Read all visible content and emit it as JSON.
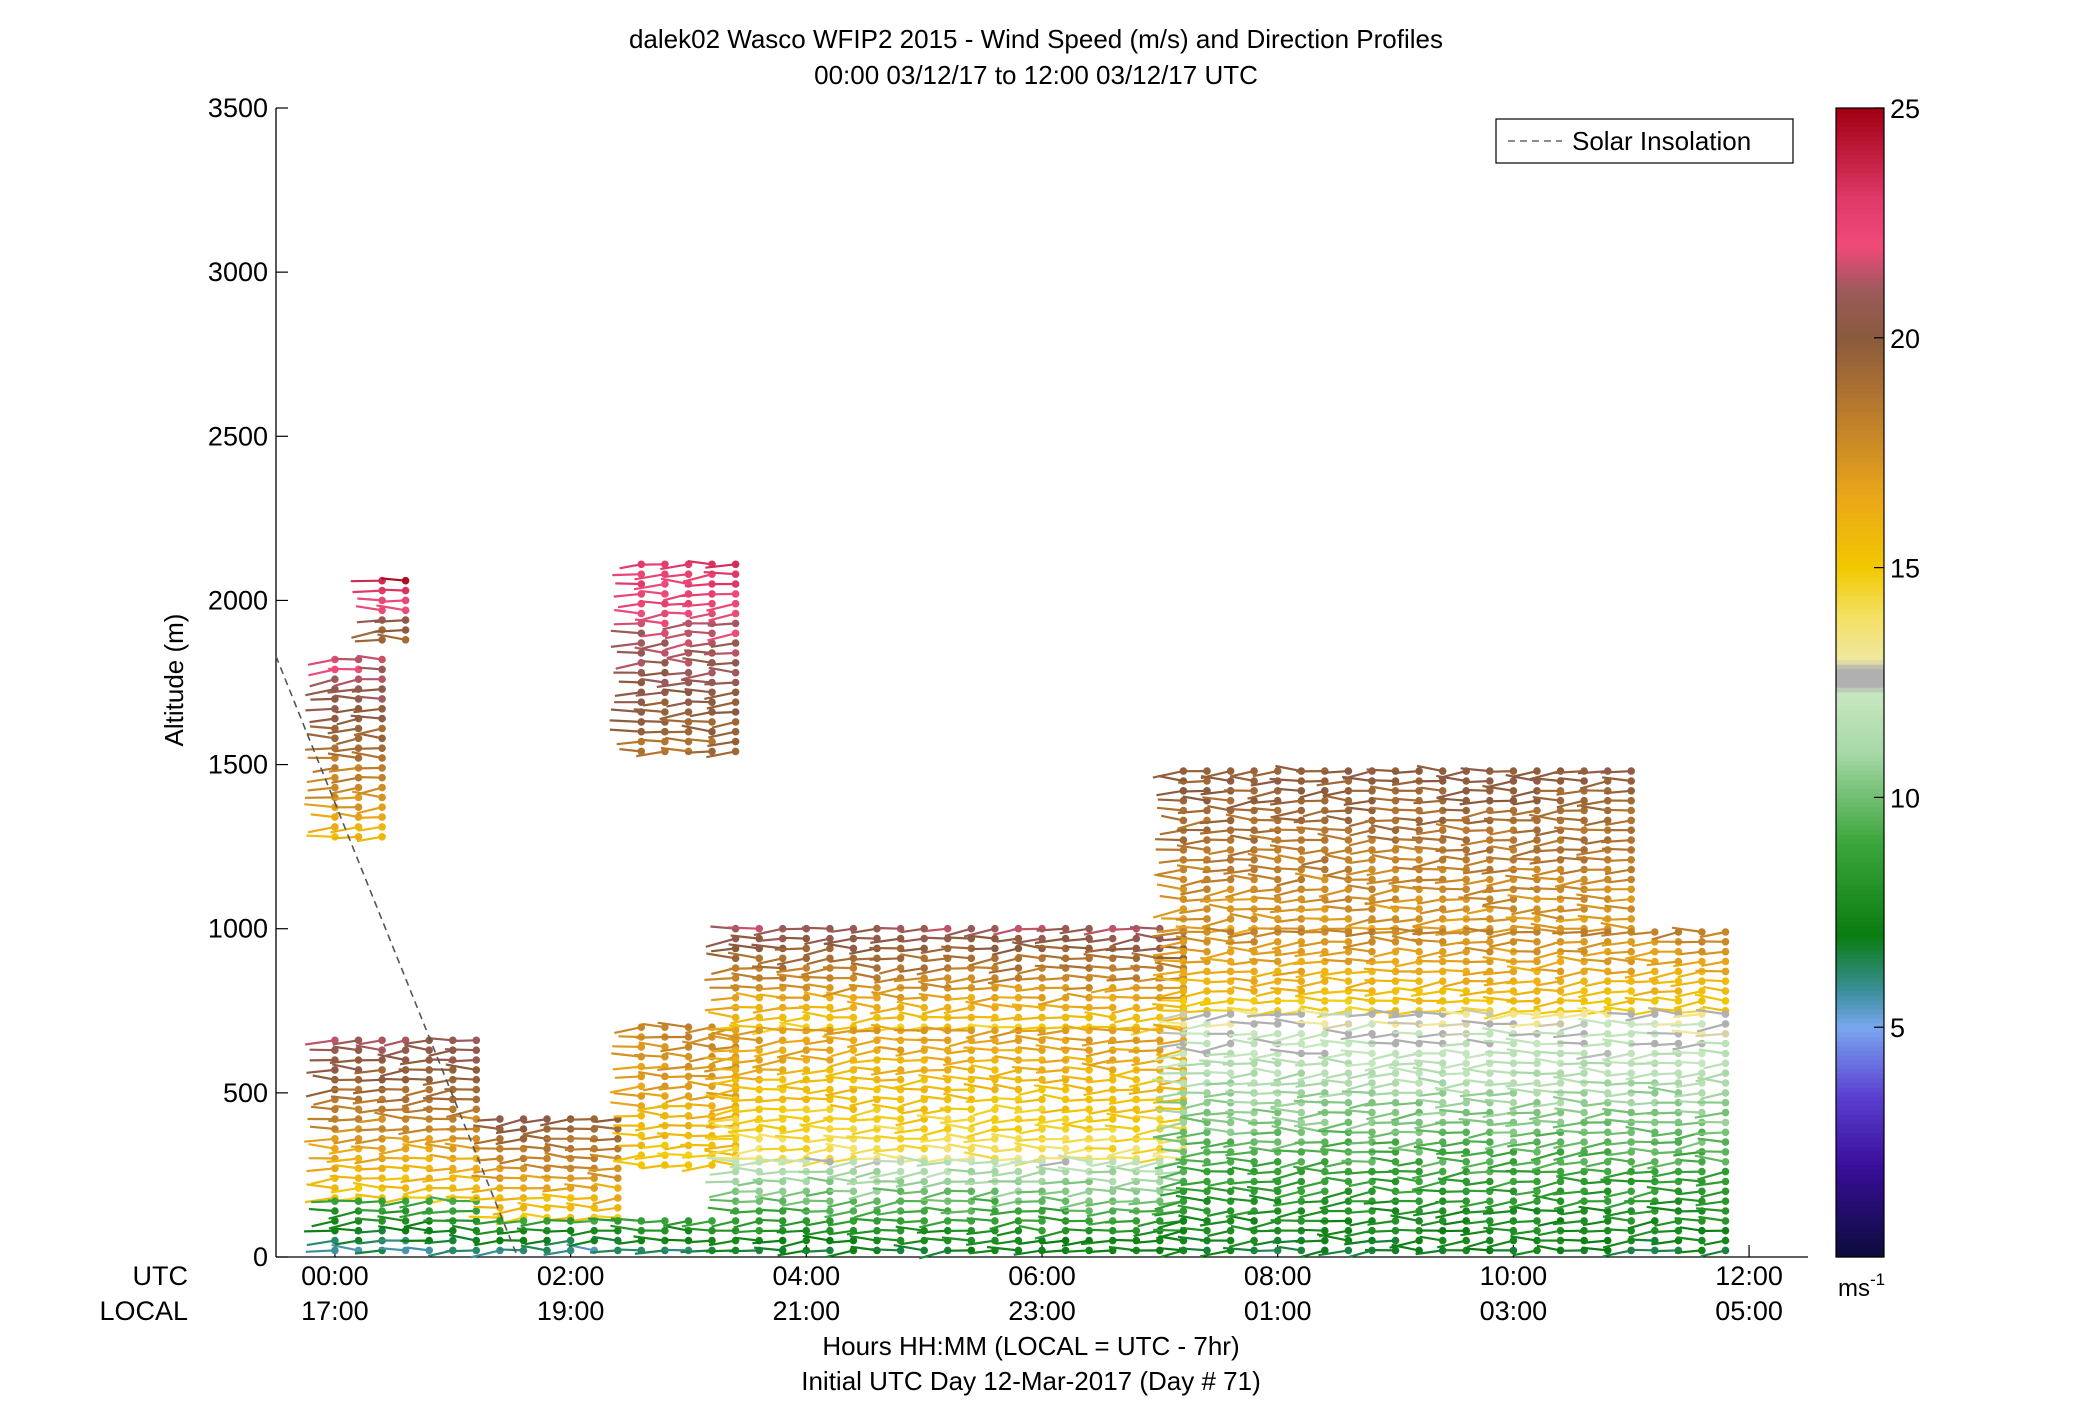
{
  "chart_data": {
    "type": "scatter",
    "title": "dalek02 Wasco WFIP2 2015 - Wind Speed (m/s) and Direction Profiles",
    "subtitle": "00:00 03/12/17 to 12:00 03/12/17  UTC",
    "ylabel": "Altitude (m)",
    "xlabel": "Hours HH:MM  (LOCAL = UTC - 7hr)",
    "xlabel2": "Initial UTC Day 12-Mar-2017 (Day # 71)",
    "row_label_utc": "UTC",
    "row_label_local": "LOCAL",
    "xlim_hours": [
      -0.5,
      12.5
    ],
    "ylim": [
      0,
      3500
    ],
    "y_ticks": [
      0,
      500,
      1000,
      1500,
      2000,
      2500,
      3000,
      3500
    ],
    "x_ticks": [
      {
        "hour": 0,
        "utc": "00:00",
        "local": "17:00"
      },
      {
        "hour": 2,
        "utc": "02:00",
        "local": "19:00"
      },
      {
        "hour": 4,
        "utc": "04:00",
        "local": "21:00"
      },
      {
        "hour": 6,
        "utc": "06:00",
        "local": "23:00"
      },
      {
        "hour": 8,
        "utc": "08:00",
        "local": "01:00"
      },
      {
        "hour": 10,
        "utc": "10:00",
        "local": "03:00"
      },
      {
        "hour": 12,
        "utc": "12:00",
        "local": "05:00"
      }
    ],
    "legend": {
      "label": "Solar Insolation",
      "position": "top-right",
      "line_color": "#666666",
      "style": "dashed"
    },
    "solar_insolation_line": [
      [
        -0.5,
        1830
      ],
      [
        1.55,
        0
      ]
    ],
    "colorbar": {
      "ticks": [
        5,
        10,
        15,
        20,
        25
      ],
      "unit_base": "ms",
      "unit_exp": "-1",
      "range": [
        0,
        25
      ],
      "stops": [
        {
          "v": 0,
          "c": "#0b0b3a"
        },
        {
          "v": 2,
          "c": "#3a0e9a"
        },
        {
          "v": 3.5,
          "c": "#5a3fd0"
        },
        {
          "v": 5,
          "c": "#7aa6f0"
        },
        {
          "v": 5.8,
          "c": "#3a8f9a"
        },
        {
          "v": 7,
          "c": "#0a7d10"
        },
        {
          "v": 9,
          "c": "#3aa53a"
        },
        {
          "v": 11,
          "c": "#a8d8a8"
        },
        {
          "v": 12.3,
          "c": "#c8e8c0"
        },
        {
          "v": 12.4,
          "c": "#b0b0b0"
        },
        {
          "v": 12.8,
          "c": "#b0b0b0"
        },
        {
          "v": 13,
          "c": "#f0e8a0"
        },
        {
          "v": 14,
          "c": "#f4e060"
        },
        {
          "v": 15,
          "c": "#f2c800"
        },
        {
          "v": 16.5,
          "c": "#eba818"
        },
        {
          "v": 18.5,
          "c": "#b8782e"
        },
        {
          "v": 20,
          "c": "#8a5a3c"
        },
        {
          "v": 21,
          "c": "#9a5a5a"
        },
        {
          "v": 22,
          "c": "#f04a7a"
        },
        {
          "v": 23,
          "c": "#e03a6a"
        },
        {
          "v": 25,
          "c": "#a00012"
        }
      ]
    },
    "regions": [
      {
        "t0": 0.0,
        "t1": 0.5,
        "z0": 1280,
        "z1": 1840,
        "speed": [
          16,
          22
        ]
      },
      {
        "t0": 0.4,
        "t1": 0.6,
        "z0": 1880,
        "z1": 2060,
        "speed": [
          19,
          24
        ]
      },
      {
        "t0": 0.0,
        "t1": 1.2,
        "z0": 180,
        "z1": 660,
        "speed": [
          15,
          21
        ]
      },
      {
        "t0": 0.0,
        "t1": 1.2,
        "z0": 20,
        "z1": 180,
        "speed": [
          6,
          9
        ]
      },
      {
        "t0": 1.4,
        "t1": 2.4,
        "z0": 120,
        "z1": 420,
        "speed": [
          15,
          20
        ]
      },
      {
        "t0": 1.4,
        "t1": 3.3,
        "z0": 20,
        "z1": 120,
        "speed": [
          6,
          9
        ]
      },
      {
        "t0": 2.6,
        "t1": 3.4,
        "z0": 1540,
        "z1": 2120,
        "speed": [
          19,
          23
        ]
      },
      {
        "t0": 2.6,
        "t1": 3.4,
        "z0": 280,
        "z1": 700,
        "speed": [
          15,
          18
        ]
      },
      {
        "t0": 3.4,
        "t1": 7.2,
        "z0": 700,
        "z1": 1000,
        "speed": [
          15,
          21
        ]
      },
      {
        "t0": 3.4,
        "t1": 7.2,
        "z0": 300,
        "z1": 700,
        "speed": [
          14,
          17
        ]
      },
      {
        "t0": 3.4,
        "t1": 7.2,
        "z0": 20,
        "z1": 300,
        "speed": [
          7,
          12
        ]
      },
      {
        "t0": 7.2,
        "t1": 11.0,
        "z0": 1000,
        "z1": 1480,
        "speed": [
          17,
          20
        ]
      },
      {
        "t0": 7.2,
        "t1": 11.9,
        "z0": 750,
        "z1": 1000,
        "speed": [
          15,
          18
        ]
      },
      {
        "t0": 7.2,
        "t1": 11.9,
        "z0": 20,
        "z1": 750,
        "speed": [
          7,
          13
        ]
      }
    ],
    "notes": "Each mark is a wind vector: a dot at (time, altitude) with a stick pointing along the wind direction, colored by speed (m/s)."
  }
}
